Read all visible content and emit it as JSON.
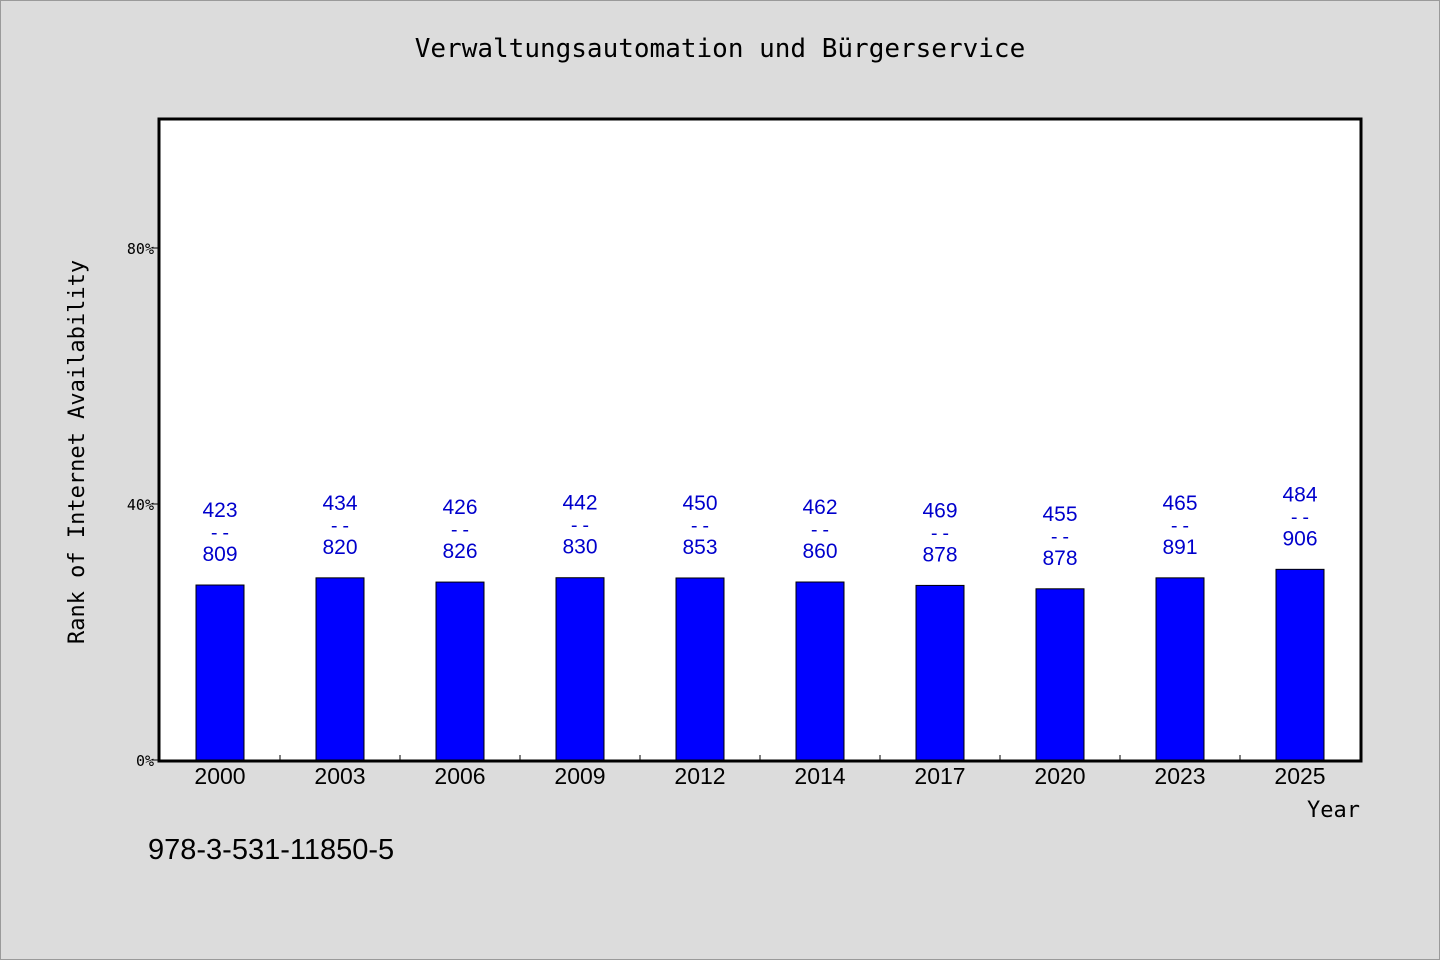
{
  "chart_data": {
    "type": "bar",
    "title": "Verwaltungsautomation und Bürgerservice",
    "xlabel": "Year",
    "ylabel": "Rank of Internet Availability",
    "categories": [
      "2000",
      "2003",
      "2006",
      "2009",
      "2012",
      "2014",
      "2017",
      "2020",
      "2023",
      "2025"
    ],
    "values": [
      0.2734,
      0.2846,
      0.278,
      0.2848,
      0.2844,
      0.2781,
      0.2728,
      0.2675,
      0.2846,
      0.2979
    ],
    "numerators": [
      "423",
      "434",
      "426",
      "442",
      "450",
      "462",
      "469",
      "455",
      "465",
      "484"
    ],
    "denominators": [
      "809",
      "820",
      "826",
      "830",
      "853",
      "860",
      "878",
      "878",
      "891",
      "906"
    ],
    "label_separator": "--",
    "ylim": [
      0,
      1
    ],
    "yticks": [
      {
        "value": 0,
        "label": "0%"
      },
      {
        "value": 0.4,
        "label": "40%"
      },
      {
        "value": 0.8,
        "label": "80%"
      }
    ],
    "grid": false,
    "bar_color": "#0000ff",
    "label_color": "#0000cc"
  },
  "footer": {
    "isbn": "978-3-531-11850-5"
  }
}
